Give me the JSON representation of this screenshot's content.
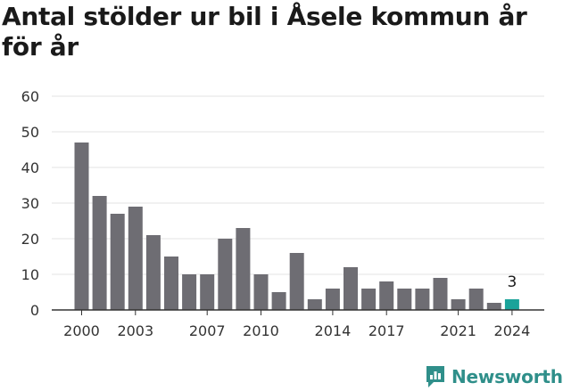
{
  "title": "Antal stölder ur bil i Åsele kommun år för år",
  "brand": {
    "name": "Newsworthy",
    "color": "#2f8f8a",
    "icon": "newsworthy-logo-icon"
  },
  "colors": {
    "bar": "#6e6d73",
    "highlight": "#1aa39a",
    "grid": "#e3e3e3",
    "axis": "#333333"
  },
  "chart_data": {
    "type": "bar",
    "title": "Antal stölder ur bil i Åsele kommun år för år",
    "xlabel": "",
    "ylabel": "",
    "ylim": [
      0,
      60
    ],
    "yticks": [
      0,
      10,
      20,
      30,
      40,
      50,
      60
    ],
    "categories": [
      2000,
      2001,
      2002,
      2003,
      2004,
      2005,
      2006,
      2007,
      2008,
      2009,
      2010,
      2011,
      2012,
      2013,
      2014,
      2015,
      2016,
      2017,
      2018,
      2019,
      2020,
      2021,
      2022,
      2023,
      2024
    ],
    "values": [
      47,
      32,
      27,
      29,
      21,
      15,
      10,
      10,
      20,
      23,
      10,
      5,
      16,
      3,
      6,
      12,
      6,
      8,
      6,
      6,
      9,
      3,
      6,
      2,
      3
    ],
    "xtick_labels": [
      2000,
      2003,
      2007,
      2010,
      2014,
      2017,
      2021,
      2024
    ],
    "highlight": {
      "category": 2024,
      "label": "3"
    },
    "grid": true,
    "legend": "none"
  }
}
